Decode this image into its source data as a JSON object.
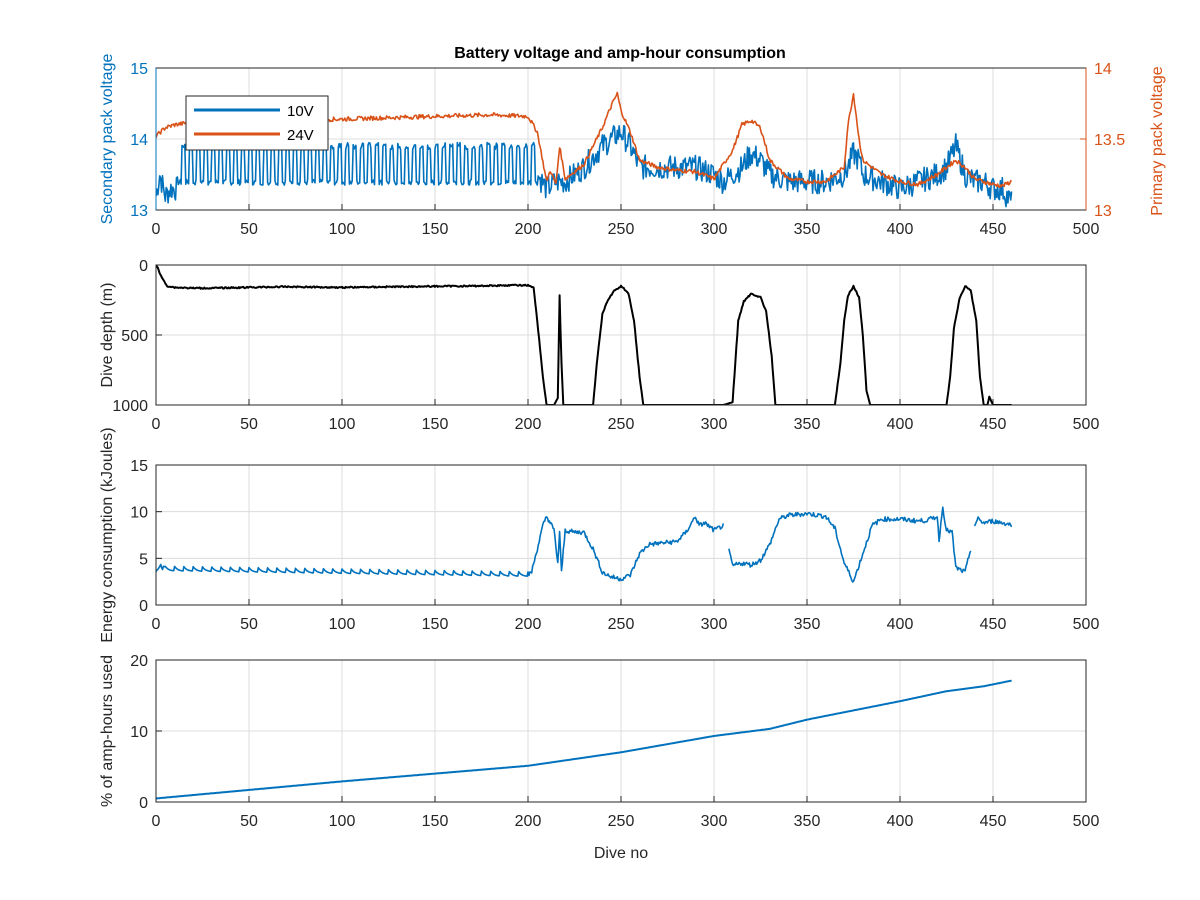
{
  "figure": {
    "title": "Battery voltage and amp-hour consumption",
    "colors": {
      "blue": "#0072BD",
      "orange": "#D95319",
      "black": "#000000"
    }
  },
  "chart_data": [
    {
      "type": "line",
      "title": "Battery voltage and amp-hour consumption",
      "xlabel": "",
      "ylabel": "Secondary pack voltage",
      "ylabel_right": "Primary pack voltage",
      "xlim": [
        0,
        500
      ],
      "ylim": [
        13,
        15
      ],
      "ylim_right": [
        13,
        14
      ],
      "xticks": [
        "0",
        "50",
        "100",
        "150",
        "200",
        "250",
        "300",
        "350",
        "400",
        "450",
        "500"
      ],
      "yticks": [
        "13",
        "14",
        "15"
      ],
      "yticks_right": [
        "13",
        "13.5",
        "14"
      ],
      "grid": true,
      "legend": "top-left",
      "series": [
        {
          "name": "10V",
          "axis": "left",
          "color": "#0072BD",
          "x": [
            0,
            2,
            5,
            8,
            12,
            20,
            50,
            100,
            150,
            180,
            200,
            205,
            210,
            215,
            220,
            230,
            240,
            245,
            250,
            255,
            260,
            270,
            280,
            290,
            300,
            305,
            310,
            315,
            320,
            325,
            330,
            340,
            350,
            360,
            370,
            372,
            375,
            378,
            380,
            390,
            400,
            410,
            420,
            425,
            430,
            435,
            440,
            445,
            450,
            455,
            460
          ],
          "y": [
            13.2,
            13.5,
            13.2,
            13.3,
            13.3,
            13.6,
            13.6,
            13.6,
            13.6,
            13.6,
            13.6,
            13.5,
            13.3,
            13.4,
            13.4,
            13.6,
            13.9,
            14.0,
            14.1,
            13.9,
            13.6,
            13.6,
            13.6,
            13.6,
            13.5,
            13.4,
            13.5,
            13.6,
            13.8,
            13.7,
            13.5,
            13.4,
            13.4,
            13.4,
            13.5,
            13.6,
            13.8,
            13.7,
            13.5,
            13.4,
            13.3,
            13.4,
            13.5,
            13.6,
            13.9,
            13.5,
            13.4,
            13.4,
            13.3,
            13.3,
            13.1
          ],
          "dense_pattern": {
            "from": 12,
            "to": 205,
            "low": 13.35,
            "high": 13.95,
            "period": 4
          }
        },
        {
          "name": "24V",
          "axis": "right",
          "color": "#D95319",
          "x": [
            0,
            5,
            10,
            15,
            20,
            100,
            150,
            180,
            200,
            205,
            210,
            212,
            215,
            217,
            220,
            230,
            240,
            245,
            248,
            250,
            255,
            260,
            270,
            280,
            290,
            300,
            310,
            315,
            320,
            325,
            330,
            340,
            350,
            360,
            370,
            372,
            375,
            378,
            380,
            390,
            400,
            410,
            420,
            425,
            430,
            435,
            440,
            450,
            455,
            460
          ],
          "y": [
            13.52,
            13.58,
            13.6,
            13.61,
            13.62,
            13.64,
            13.66,
            13.67,
            13.66,
            13.55,
            13.2,
            13.28,
            13.18,
            13.45,
            13.22,
            13.32,
            13.58,
            13.74,
            13.82,
            13.7,
            13.55,
            13.35,
            13.3,
            13.28,
            13.27,
            13.22,
            13.42,
            13.6,
            13.63,
            13.58,
            13.35,
            13.22,
            13.2,
            13.2,
            13.3,
            13.6,
            13.82,
            13.5,
            13.35,
            13.25,
            13.2,
            13.18,
            13.25,
            13.3,
            13.35,
            13.3,
            13.22,
            13.18,
            13.17,
            13.2
          ]
        }
      ]
    },
    {
      "type": "line",
      "xlabel": "",
      "ylabel": "Dive depth (m)",
      "xlim": [
        0,
        500
      ],
      "ylim": [
        0,
        1000
      ],
      "y_reversed": true,
      "xticks": [
        "0",
        "50",
        "100",
        "150",
        "200",
        "250",
        "300",
        "350",
        "400",
        "450",
        "500"
      ],
      "yticks": [
        "0",
        "500",
        "1000"
      ],
      "grid": true,
      "series": [
        {
          "color": "#000000",
          "x": [
            0,
            1,
            2,
            4,
            6,
            10,
            20,
            30,
            50,
            70,
            100,
            130,
            150,
            170,
            190,
            200,
            203,
            205,
            208,
            210,
            212,
            214,
            216,
            217,
            218,
            219,
            220,
            222,
            225,
            230,
            235,
            237,
            240,
            243,
            246,
            250,
            254,
            257,
            260,
            262,
            265,
            270,
            280,
            290,
            300,
            305,
            310,
            313,
            316,
            320,
            325,
            328,
            331,
            333,
            335,
            340,
            350,
            360,
            365,
            368,
            370,
            372,
            375,
            378,
            380,
            382,
            384,
            390,
            400,
            410,
            420,
            425,
            427,
            429,
            432,
            435,
            438,
            441,
            443,
            445,
            447,
            448,
            450,
            452,
            455,
            460
          ],
          "y": [
            0,
            20,
            60,
            110,
            150,
            160,
            165,
            165,
            160,
            155,
            160,
            155,
            152,
            150,
            145,
            145,
            160,
            400,
            800,
            1000,
            1000,
            1000,
            950,
            220,
            700,
            1000,
            1000,
            1000,
            1000,
            1000,
            1000,
            700,
            350,
            250,
            190,
            150,
            200,
            400,
            800,
            1000,
            1000,
            1000,
            1000,
            1000,
            1000,
            1000,
            980,
            400,
            260,
            205,
            230,
            330,
            650,
            1000,
            1000,
            1000,
            1000,
            1000,
            1000,
            700,
            400,
            220,
            150,
            230,
            500,
            900,
            1000,
            1000,
            1000,
            1000,
            1000,
            1000,
            800,
            450,
            240,
            150,
            180,
            400,
            800,
            1000,
            1000,
            940,
            1000,
            1000,
            1000,
            1000
          ]
        }
      ]
    },
    {
      "type": "line",
      "xlabel": "",
      "ylabel": "Energy consumption (kJoules)",
      "xlim": [
        0,
        500
      ],
      "ylim": [
        0,
        15
      ],
      "xticks": [
        "0",
        "50",
        "100",
        "150",
        "200",
        "250",
        "300",
        "350",
        "400",
        "450",
        "500"
      ],
      "yticks": [
        "0",
        "5",
        "10",
        "15"
      ],
      "grid": true,
      "series": [
        {
          "color": "#0072BD",
          "segments": [
            {
              "x": [
                0,
                2,
                5,
                200,
                202,
                205,
                208,
                210,
                212,
                214,
                216,
                217,
                218,
                220,
                225,
                230,
                235,
                240,
                245,
                250,
                255,
                260,
                265,
                270,
                280,
                285,
                290,
                292,
                295,
                300,
                305
              ],
              "y": [
                3.8,
                4.3,
                3.8,
                3.2,
                3.6,
                6.0,
                8.5,
                9.5,
                8.8,
                8.0,
                4.5,
                7.8,
                3.5,
                8.0,
                7.8,
                7.8,
                6.0,
                3.5,
                3.0,
                2.8,
                3.2,
                5.5,
                6.5,
                6.6,
                6.8,
                7.8,
                9.5,
                8.5,
                8.8,
                8.0,
                8.5
              ],
              "ripple": {
                "from": 5,
                "to": 200,
                "amplitude": 0.5,
                "period": 5
              }
            },
            {
              "x": [
                308,
                310,
                315,
                320,
                325,
                330,
                335,
                340,
                350,
                360,
                365,
                370,
                375,
                380,
                385,
                390,
                400,
                410,
                415,
                420,
                421,
                423,
                425,
                428,
                430,
                432,
                435,
                438
              ],
              "y": [
                5.8,
                4.2,
                4.5,
                4.3,
                4.8,
                6.5,
                9.2,
                9.6,
                9.8,
                9.5,
                8.2,
                4.5,
                2.5,
                5.5,
                8.5,
                9.2,
                9.2,
                9.0,
                9.1,
                9.5,
                7.0,
                10.5,
                8.0,
                7.8,
                4.0,
                3.8,
                3.5,
                6.0
              ]
            },
            {
              "x": [
                440,
                442,
                445,
                450,
                455,
                460
              ],
              "y": [
                8.5,
                9.2,
                8.8,
                9.0,
                8.8,
                8.6
              ]
            }
          ]
        }
      ]
    },
    {
      "type": "line",
      "xlabel": "Dive no",
      "ylabel": "% of amp-hours used",
      "xlim": [
        0,
        500
      ],
      "ylim": [
        0,
        20
      ],
      "xticks": [
        "0",
        "50",
        "100",
        "150",
        "200",
        "250",
        "300",
        "350",
        "400",
        "450",
        "500"
      ],
      "yticks": [
        "0",
        "10",
        "20"
      ],
      "grid": true,
      "series": [
        {
          "color": "#0072BD",
          "x": [
            0,
            50,
            100,
            150,
            200,
            250,
            300,
            330,
            350,
            375,
            400,
            425,
            445,
            460
          ],
          "y": [
            0.5,
            1.7,
            2.9,
            4.0,
            5.1,
            7.0,
            9.3,
            10.3,
            11.6,
            12.9,
            14.2,
            15.6,
            16.3,
            17.1
          ]
        }
      ]
    }
  ]
}
